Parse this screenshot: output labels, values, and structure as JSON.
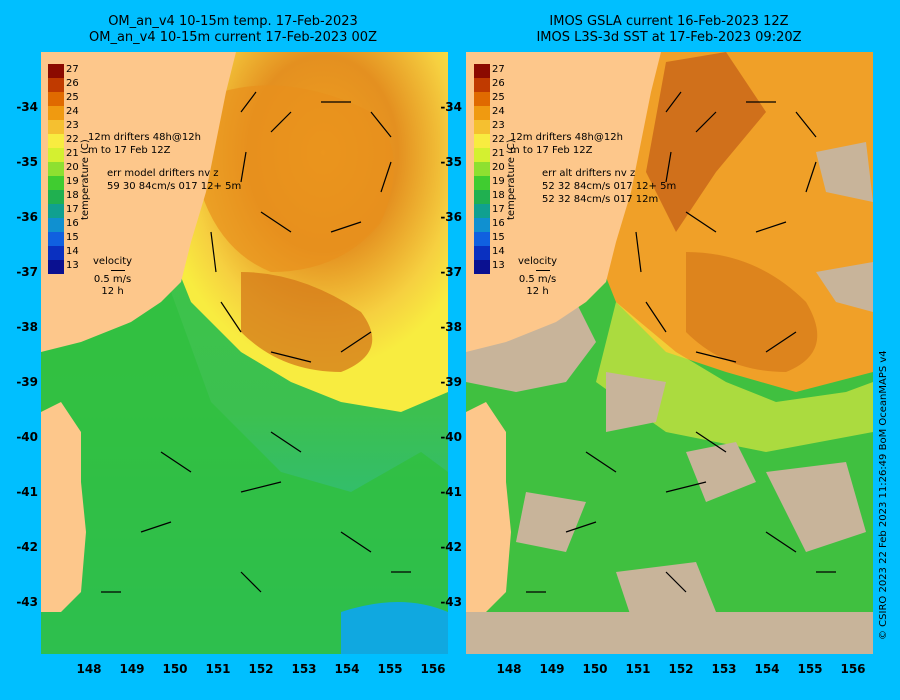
{
  "left_panel": {
    "title_line1": "OM_an_v4  10-15m temp. 17-Feb-2023",
    "title_line2": "OM_an_v4  10-15m current 17-Feb-2023 00Z",
    "legend_drifters": "12m  drifters 48h@12h",
    "legend_drifters_to": "m   to 17 Feb 12Z",
    "err_label": "err model drifters nv z",
    "err_values": "59 30 84cm/s 017 12+ 5m"
  },
  "right_panel": {
    "title_line1": "IMOS GSLA current 16-Feb-2023 12Z",
    "title_line2": "IMOS L3S-3d SST at 17-Feb-2023 09:20Z",
    "legend_drifters": "12m  drifters 48h@12h",
    "legend_drifters_to": "m   to 17 Feb 12Z",
    "err_label": "err alt drifters nv z",
    "err_values_1": "52 32 84cm/s 017 12+ 5m",
    "err_values_2": "52 32 84cm/s 017 12m"
  },
  "colorbar": {
    "label": "temperature (C)",
    "ticks": [
      "27",
      "26",
      "25",
      "24",
      "23",
      "22",
      "21",
      "20",
      "19",
      "18",
      "17",
      "16",
      "15",
      "14",
      "13"
    ],
    "colors": [
      "#8b0a00",
      "#c03a00",
      "#e06a00",
      "#f09a10",
      "#f5c030",
      "#f8ec40",
      "#d4f030",
      "#8ee030",
      "#40cc30",
      "#20b050",
      "#10a090",
      "#1090d0",
      "#1060e0",
      "#0a30c0",
      "#0a1090"
    ]
  },
  "velocity_legend": {
    "label": "velocity",
    "speed": "0.5 m/s",
    "time": "12 h"
  },
  "x_axis_ticks": [
    "148",
    "149",
    "150",
    "151",
    "152",
    "153",
    "154",
    "155",
    "156"
  ],
  "y_axis_ticks": [
    "-34",
    "-35",
    "-36",
    "-37",
    "-38",
    "-39",
    "-40",
    "-41",
    "-42",
    "-43"
  ],
  "credit": "© CSIRO 2023   22 Feb 2023 11:26:49 BoM OceanMAPS v4",
  "map_colors": {
    "land": "#fdc78b",
    "ocean_bg": "#00bfff",
    "cloud": "#c8b49a"
  }
}
